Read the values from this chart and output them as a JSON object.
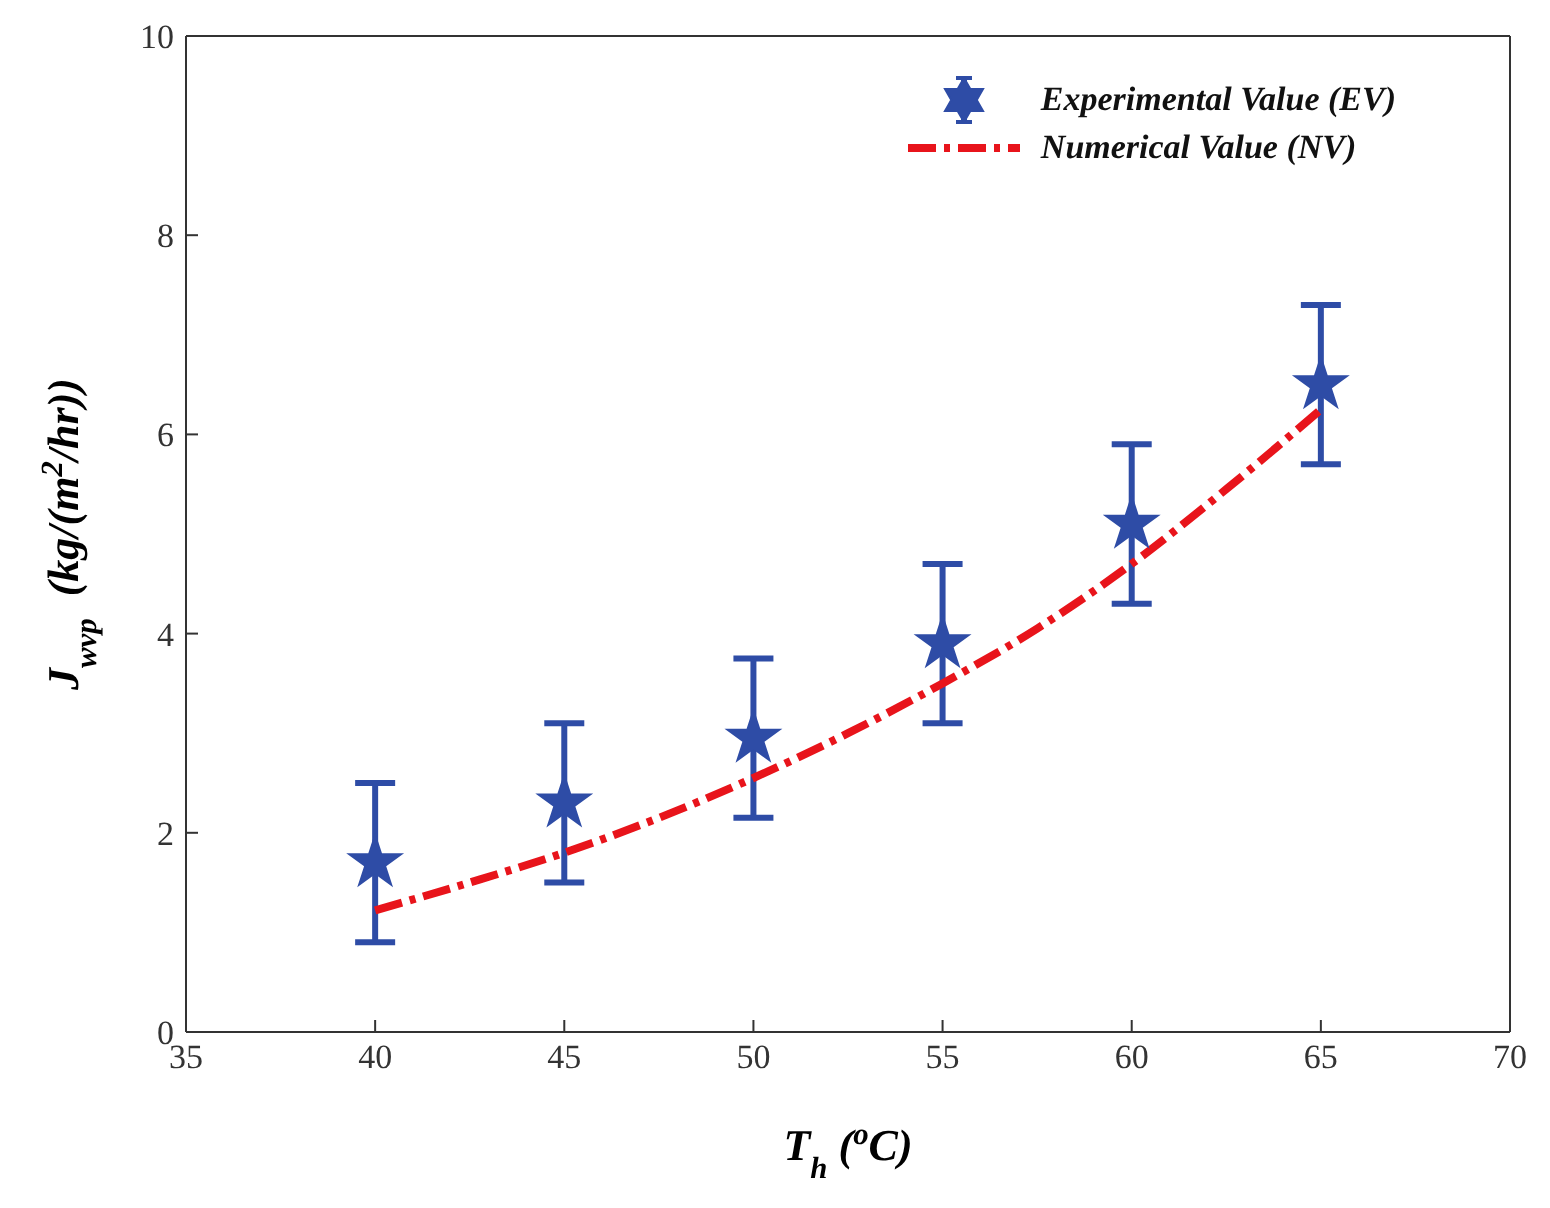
{
  "chart_data": {
    "type": "scatter",
    "xlabel": "T$_{h}$ ($^{o}$C)",
    "ylabel": "J$_{wvp}$  (kg/(m$^{2}$/hr))",
    "xlim": [
      35,
      70
    ],
    "xticks": [
      35,
      40,
      45,
      50,
      55,
      60,
      65,
      70
    ],
    "ylim": [
      0,
      10
    ],
    "yticks": [
      0,
      2,
      4,
      6,
      8,
      10
    ],
    "legend": "top right",
    "line_style": "dashed",
    "series": [
      {
        "name": "Experimental Value (EV)",
        "marker": "star",
        "color": "#2e4ca6",
        "x": [
          40,
          45,
          50,
          55,
          60,
          65
        ],
        "values": [
          1.7,
          2.3,
          2.95,
          3.9,
          5.1,
          6.5
        ],
        "errors": [
          0.8,
          0.8,
          0.8,
          0.8,
          0.8,
          0.8
        ]
      },
      {
        "name": "Numerical Value (NV)",
        "type": "line",
        "marker": "none",
        "color": "#e8141b",
        "x": [
          40,
          42.5,
          45,
          47.5,
          50,
          52.5,
          55,
          57.5,
          60,
          62.5,
          65
        ],
        "values": [
          1.22,
          1.5,
          1.8,
          2.15,
          2.55,
          3.0,
          3.5,
          4.05,
          4.7,
          5.45,
          6.25
        ]
      }
    ]
  }
}
